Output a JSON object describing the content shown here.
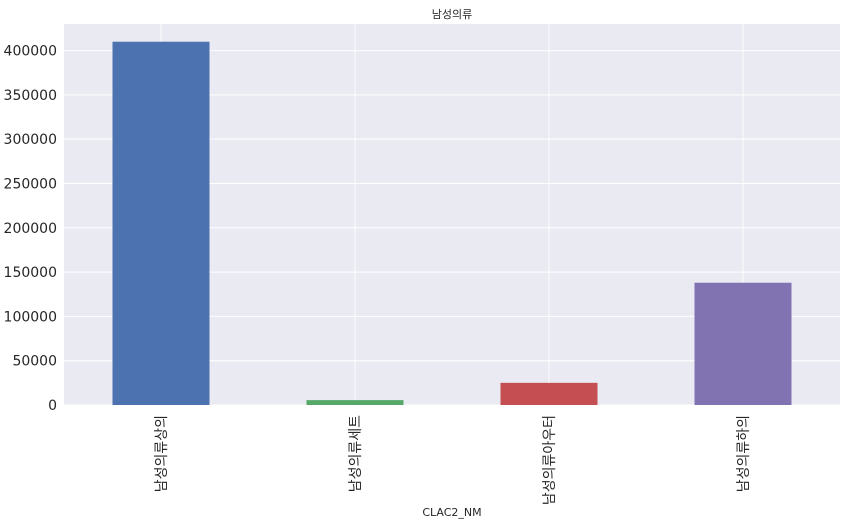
{
  "chart_data": {
    "type": "bar",
    "title": "남성의류",
    "xlabel": "CLAC2_NM",
    "ylabel": "",
    "categories": [
      "남성의류상의",
      "남성의류세트",
      "남성의류아우터",
      "남성의류하의"
    ],
    "values": [
      410000,
      5500,
      25000,
      138000
    ],
    "colors": [
      "#4C72B0",
      "#55A868",
      "#C44E52",
      "#8172B2"
    ],
    "ylim": [
      0,
      430000
    ],
    "yticks": [
      0,
      50000,
      100000,
      150000,
      200000,
      250000,
      300000,
      350000,
      400000
    ],
    "grid": true,
    "background": "#EAEAF2"
  }
}
